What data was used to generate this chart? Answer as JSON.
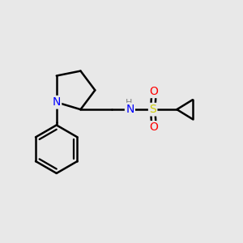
{
  "background_color": "#e8e8e8",
  "bond_color": "#000000",
  "atom_colors": {
    "N": "#0000ff",
    "S": "#cccc00",
    "O": "#ff0000",
    "C": "#000000",
    "H": "#808080"
  },
  "figsize": [
    3.0,
    3.0
  ],
  "dpi": 100,
  "xlim": [
    0,
    10
  ],
  "ylim": [
    0,
    10
  ]
}
